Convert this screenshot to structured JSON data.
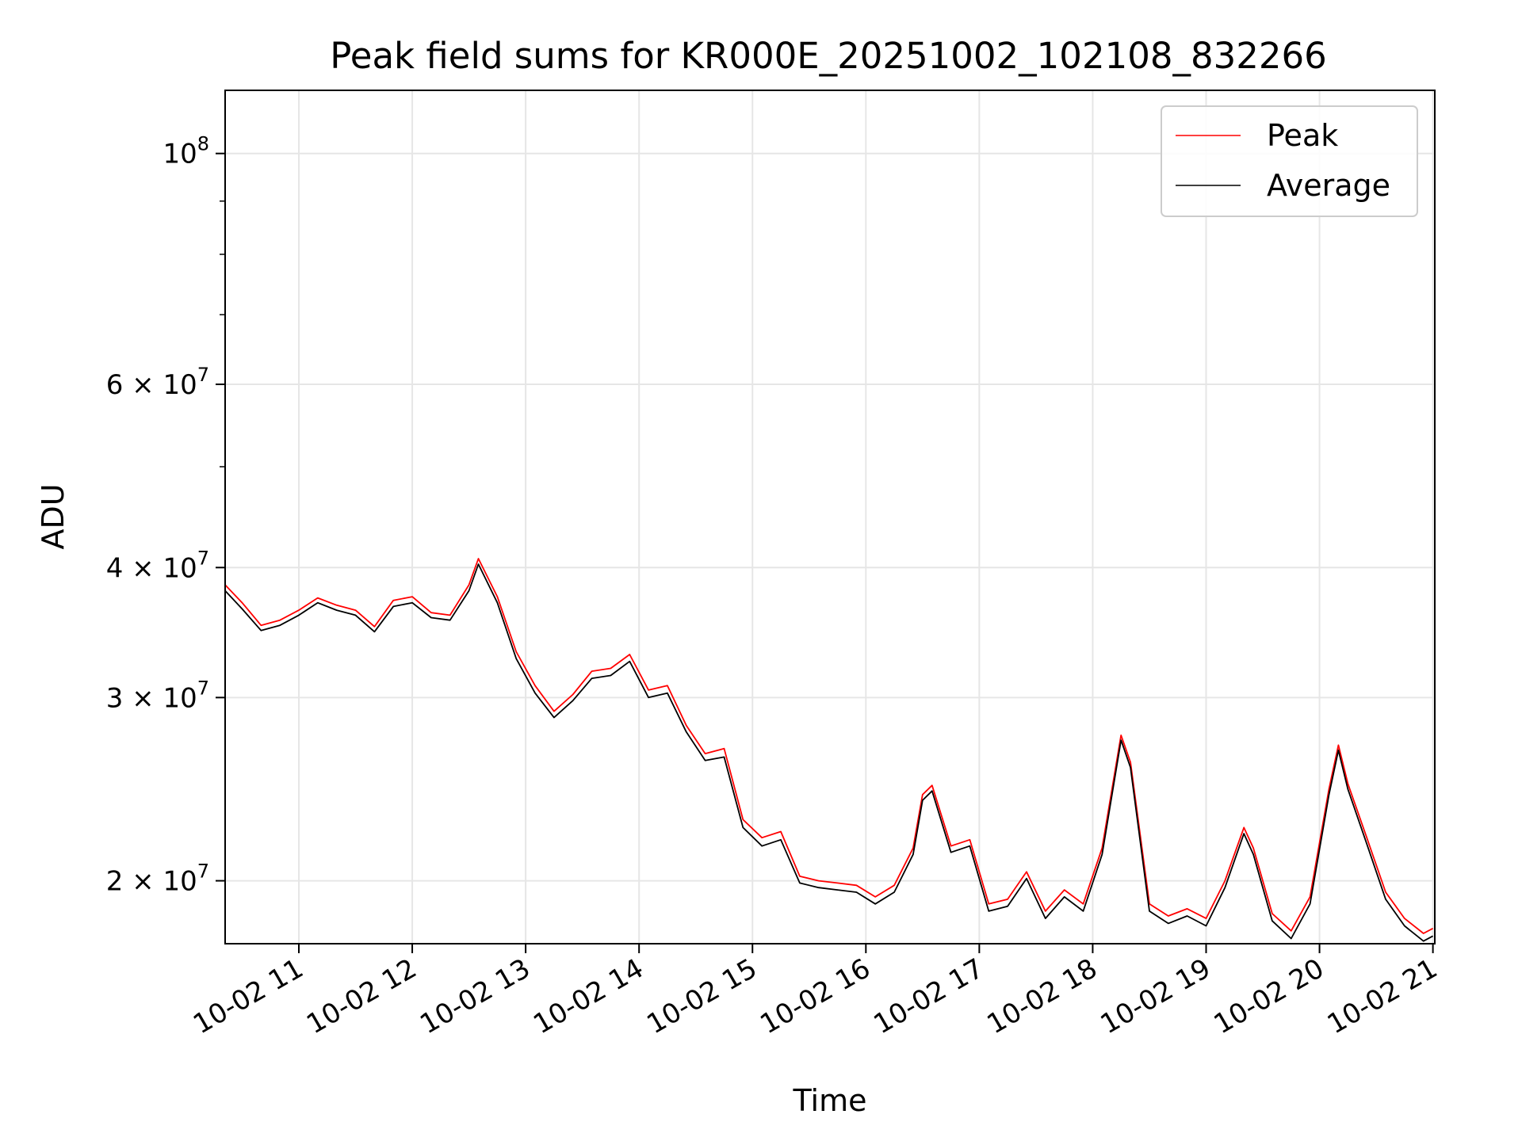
{
  "chart_data": {
    "type": "line",
    "title": "Peak field sums for KR000E_20251002_102108_832266",
    "xlabel": "Time",
    "ylabel": "ADU",
    "y_scale": "log",
    "ylim": [
      17400000,
      115000000
    ],
    "xlim": [
      "2025-10-02 10:21",
      "2025-10-02 21:01"
    ],
    "grid": true,
    "legend_placement": "top-right",
    "x_ticks": [
      {
        "value": "2025-10-02 11:00",
        "label": "10-02 11"
      },
      {
        "value": "2025-10-02 12:00",
        "label": "10-02 12"
      },
      {
        "value": "2025-10-02 13:00",
        "label": "10-02 13"
      },
      {
        "value": "2025-10-02 14:00",
        "label": "10-02 14"
      },
      {
        "value": "2025-10-02 15:00",
        "label": "10-02 15"
      },
      {
        "value": "2025-10-02 16:00",
        "label": "10-02 16"
      },
      {
        "value": "2025-10-02 17:00",
        "label": "10-02 17"
      },
      {
        "value": "2025-10-02 18:00",
        "label": "10-02 18"
      },
      {
        "value": "2025-10-02 19:00",
        "label": "10-02 19"
      },
      {
        "value": "2025-10-02 20:00",
        "label": "10-02 20"
      },
      {
        "value": "2025-10-02 21:00",
        "label": "10-02 21"
      }
    ],
    "y_ticks_major": [
      {
        "value": 20000000,
        "mantissa": "2",
        "exponent": "7"
      },
      {
        "value": 30000000,
        "mantissa": "3",
        "exponent": "7"
      },
      {
        "value": 40000000,
        "mantissa": "4",
        "exponent": "7"
      },
      {
        "value": 60000000,
        "mantissa": "6",
        "exponent": "7"
      },
      {
        "value": 100000000,
        "mantissa": "",
        "exponent": "8"
      }
    ],
    "y_ticks_minor": [
      50000000,
      70000000,
      80000000,
      90000000
    ],
    "series": [
      {
        "name": "Peak",
        "color": "#ff0000",
        "points": [
          [
            "2025-10-02 10:21",
            38500000
          ],
          [
            "2025-10-02 10:30",
            37000000
          ],
          [
            "2025-10-02 10:40",
            35200000
          ],
          [
            "2025-10-02 10:50",
            35600000
          ],
          [
            "2025-10-02 11:00",
            36400000
          ],
          [
            "2025-10-02 11:10",
            37400000
          ],
          [
            "2025-10-02 11:20",
            36800000
          ],
          [
            "2025-10-02 11:30",
            36400000
          ],
          [
            "2025-10-02 11:40",
            35100000
          ],
          [
            "2025-10-02 11:50",
            37200000
          ],
          [
            "2025-10-02 12:00",
            37500000
          ],
          [
            "2025-10-02 12:10",
            36200000
          ],
          [
            "2025-10-02 12:20",
            36000000
          ],
          [
            "2025-10-02 12:30",
            38500000
          ],
          [
            "2025-10-02 12:35",
            40800000
          ],
          [
            "2025-10-02 12:45",
            37500000
          ],
          [
            "2025-10-02 12:55",
            33200000
          ],
          [
            "2025-10-02 13:05",
            30800000
          ],
          [
            "2025-10-02 13:15",
            29100000
          ],
          [
            "2025-10-02 13:25",
            30200000
          ],
          [
            "2025-10-02 13:35",
            31800000
          ],
          [
            "2025-10-02 13:45",
            32000000
          ],
          [
            "2025-10-02 13:55",
            33000000
          ],
          [
            "2025-10-02 14:05",
            30500000
          ],
          [
            "2025-10-02 14:15",
            30800000
          ],
          [
            "2025-10-02 14:25",
            28200000
          ],
          [
            "2025-10-02 14:35",
            26500000
          ],
          [
            "2025-10-02 14:45",
            26800000
          ],
          [
            "2025-10-02 14:55",
            22900000
          ],
          [
            "2025-10-02 15:05",
            22000000
          ],
          [
            "2025-10-02 15:15",
            22300000
          ],
          [
            "2025-10-02 15:25",
            20200000
          ],
          [
            "2025-10-02 15:35",
            20000000
          ],
          [
            "2025-10-02 15:45",
            19900000
          ],
          [
            "2025-10-02 15:55",
            19800000
          ],
          [
            "2025-10-02 16:05",
            19300000
          ],
          [
            "2025-10-02 16:15",
            19800000
          ],
          [
            "2025-10-02 16:25",
            21500000
          ],
          [
            "2025-10-02 16:30",
            24200000
          ],
          [
            "2025-10-02 16:35",
            24700000
          ],
          [
            "2025-10-02 16:45",
            21600000
          ],
          [
            "2025-10-02 16:55",
            21900000
          ],
          [
            "2025-10-02 17:05",
            19000000
          ],
          [
            "2025-10-02 17:15",
            19200000
          ],
          [
            "2025-10-02 17:25",
            20400000
          ],
          [
            "2025-10-02 17:35",
            18700000
          ],
          [
            "2025-10-02 17:45",
            19600000
          ],
          [
            "2025-10-02 17:55",
            19000000
          ],
          [
            "2025-10-02 18:05",
            21500000
          ],
          [
            "2025-10-02 18:15",
            27600000
          ],
          [
            "2025-10-02 18:20",
            26000000
          ],
          [
            "2025-10-02 18:30",
            19000000
          ],
          [
            "2025-10-02 18:40",
            18500000
          ],
          [
            "2025-10-02 18:50",
            18800000
          ],
          [
            "2025-10-02 19:00",
            18400000
          ],
          [
            "2025-10-02 19:10",
            20000000
          ],
          [
            "2025-10-02 19:20",
            22500000
          ],
          [
            "2025-10-02 19:25",
            21500000
          ],
          [
            "2025-10-02 19:35",
            18600000
          ],
          [
            "2025-10-02 19:45",
            17900000
          ],
          [
            "2025-10-02 19:55",
            19300000
          ],
          [
            "2025-10-02 20:05",
            24500000
          ],
          [
            "2025-10-02 20:10",
            27000000
          ],
          [
            "2025-10-02 20:15",
            24800000
          ],
          [
            "2025-10-02 20:25",
            22000000
          ],
          [
            "2025-10-02 20:35",
            19500000
          ],
          [
            "2025-10-02 20:45",
            18400000
          ],
          [
            "2025-10-02 20:55",
            17800000
          ],
          [
            "2025-10-02 21:00",
            18000000
          ]
        ]
      },
      {
        "name": "Average",
        "color": "#000000",
        "points": [
          [
            "2025-10-02 10:21",
            38000000
          ],
          [
            "2025-10-02 10:30",
            36500000
          ],
          [
            "2025-10-02 10:40",
            34800000
          ],
          [
            "2025-10-02 10:50",
            35200000
          ],
          [
            "2025-10-02 11:00",
            36000000
          ],
          [
            "2025-10-02 11:10",
            37000000
          ],
          [
            "2025-10-02 11:20",
            36400000
          ],
          [
            "2025-10-02 11:30",
            36000000
          ],
          [
            "2025-10-02 11:40",
            34700000
          ],
          [
            "2025-10-02 11:50",
            36700000
          ],
          [
            "2025-10-02 12:00",
            37000000
          ],
          [
            "2025-10-02 12:10",
            35800000
          ],
          [
            "2025-10-02 12:20",
            35600000
          ],
          [
            "2025-10-02 12:30",
            38000000
          ],
          [
            "2025-10-02 12:35",
            40300000
          ],
          [
            "2025-10-02 12:45",
            37000000
          ],
          [
            "2025-10-02 12:55",
            32700000
          ],
          [
            "2025-10-02 13:05",
            30300000
          ],
          [
            "2025-10-02 13:15",
            28700000
          ],
          [
            "2025-10-02 13:25",
            29800000
          ],
          [
            "2025-10-02 13:35",
            31300000
          ],
          [
            "2025-10-02 13:45",
            31500000
          ],
          [
            "2025-10-02 13:55",
            32500000
          ],
          [
            "2025-10-02 14:05",
            30000000
          ],
          [
            "2025-10-02 14:15",
            30300000
          ],
          [
            "2025-10-02 14:25",
            27800000
          ],
          [
            "2025-10-02 14:35",
            26100000
          ],
          [
            "2025-10-02 14:45",
            26300000
          ],
          [
            "2025-10-02 14:55",
            22500000
          ],
          [
            "2025-10-02 15:05",
            21600000
          ],
          [
            "2025-10-02 15:15",
            21900000
          ],
          [
            "2025-10-02 15:25",
            19900000
          ],
          [
            "2025-10-02 15:35",
            19700000
          ],
          [
            "2025-10-02 15:45",
            19600000
          ],
          [
            "2025-10-02 15:55",
            19500000
          ],
          [
            "2025-10-02 16:05",
            19000000
          ],
          [
            "2025-10-02 16:15",
            19500000
          ],
          [
            "2025-10-02 16:25",
            21200000
          ],
          [
            "2025-10-02 16:30",
            23900000
          ],
          [
            "2025-10-02 16:35",
            24400000
          ],
          [
            "2025-10-02 16:45",
            21300000
          ],
          [
            "2025-10-02 16:55",
            21600000
          ],
          [
            "2025-10-02 17:05",
            18700000
          ],
          [
            "2025-10-02 17:15",
            18900000
          ],
          [
            "2025-10-02 17:25",
            20100000
          ],
          [
            "2025-10-02 17:35",
            18400000
          ],
          [
            "2025-10-02 17:45",
            19300000
          ],
          [
            "2025-10-02 17:55",
            18700000
          ],
          [
            "2025-10-02 18:05",
            21200000
          ],
          [
            "2025-10-02 18:15",
            27300000
          ],
          [
            "2025-10-02 18:20",
            25700000
          ],
          [
            "2025-10-02 18:30",
            18700000
          ],
          [
            "2025-10-02 18:40",
            18200000
          ],
          [
            "2025-10-02 18:50",
            18500000
          ],
          [
            "2025-10-02 19:00",
            18100000
          ],
          [
            "2025-10-02 19:10",
            19700000
          ],
          [
            "2025-10-02 19:20",
            22200000
          ],
          [
            "2025-10-02 19:25",
            21200000
          ],
          [
            "2025-10-02 19:35",
            18300000
          ],
          [
            "2025-10-02 19:45",
            17600000
          ],
          [
            "2025-10-02 19:55",
            19000000
          ],
          [
            "2025-10-02 20:05",
            24200000
          ],
          [
            "2025-10-02 20:10",
            26700000
          ],
          [
            "2025-10-02 20:15",
            24500000
          ],
          [
            "2025-10-02 20:25",
            21700000
          ],
          [
            "2025-10-02 20:35",
            19200000
          ],
          [
            "2025-10-02 20:45",
            18100000
          ],
          [
            "2025-10-02 20:55",
            17500000
          ],
          [
            "2025-10-02 21:00",
            17700000
          ]
        ]
      }
    ]
  }
}
